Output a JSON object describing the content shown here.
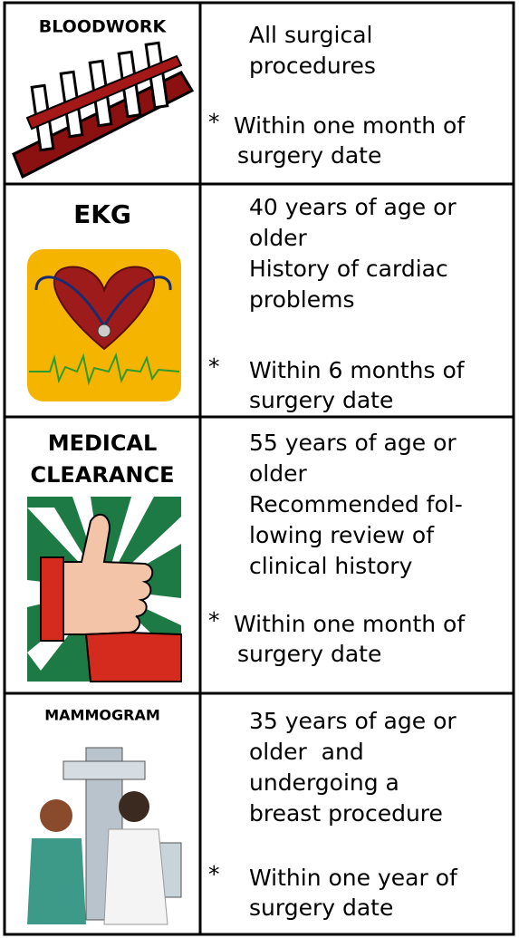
{
  "table": {
    "rows": [
      {
        "label": [
          "BLOODWORK"
        ],
        "criteria": [
          "All surgical",
          "procedures"
        ],
        "marker": "*",
        "note": [
          "Within one month of",
          "surgery date"
        ]
      },
      {
        "label": [
          "EKG"
        ],
        "criteria": [
          "40 years of age or",
          "older",
          "History of cardiac",
          "problems"
        ],
        "marker": "*",
        "note": [
          "Within 6 months of",
          "surgery date"
        ]
      },
      {
        "label": [
          "MEDICAL",
          "CLEARANCE"
        ],
        "criteria": [
          "55 years of age or",
          "older",
          "Recommended fol-",
          "lowing review of",
          "clinical history"
        ],
        "marker": "*",
        "note": [
          "Within one month of",
          "surgery date"
        ]
      },
      {
        "label": [
          "MAMMOGRAM"
        ],
        "criteria": [
          "35 years of age or",
          "older  and",
          "undergoing a",
          "breast procedure"
        ],
        "marker": "*",
        "note": [
          "Within one year of",
          "surgery date"
        ]
      }
    ]
  }
}
